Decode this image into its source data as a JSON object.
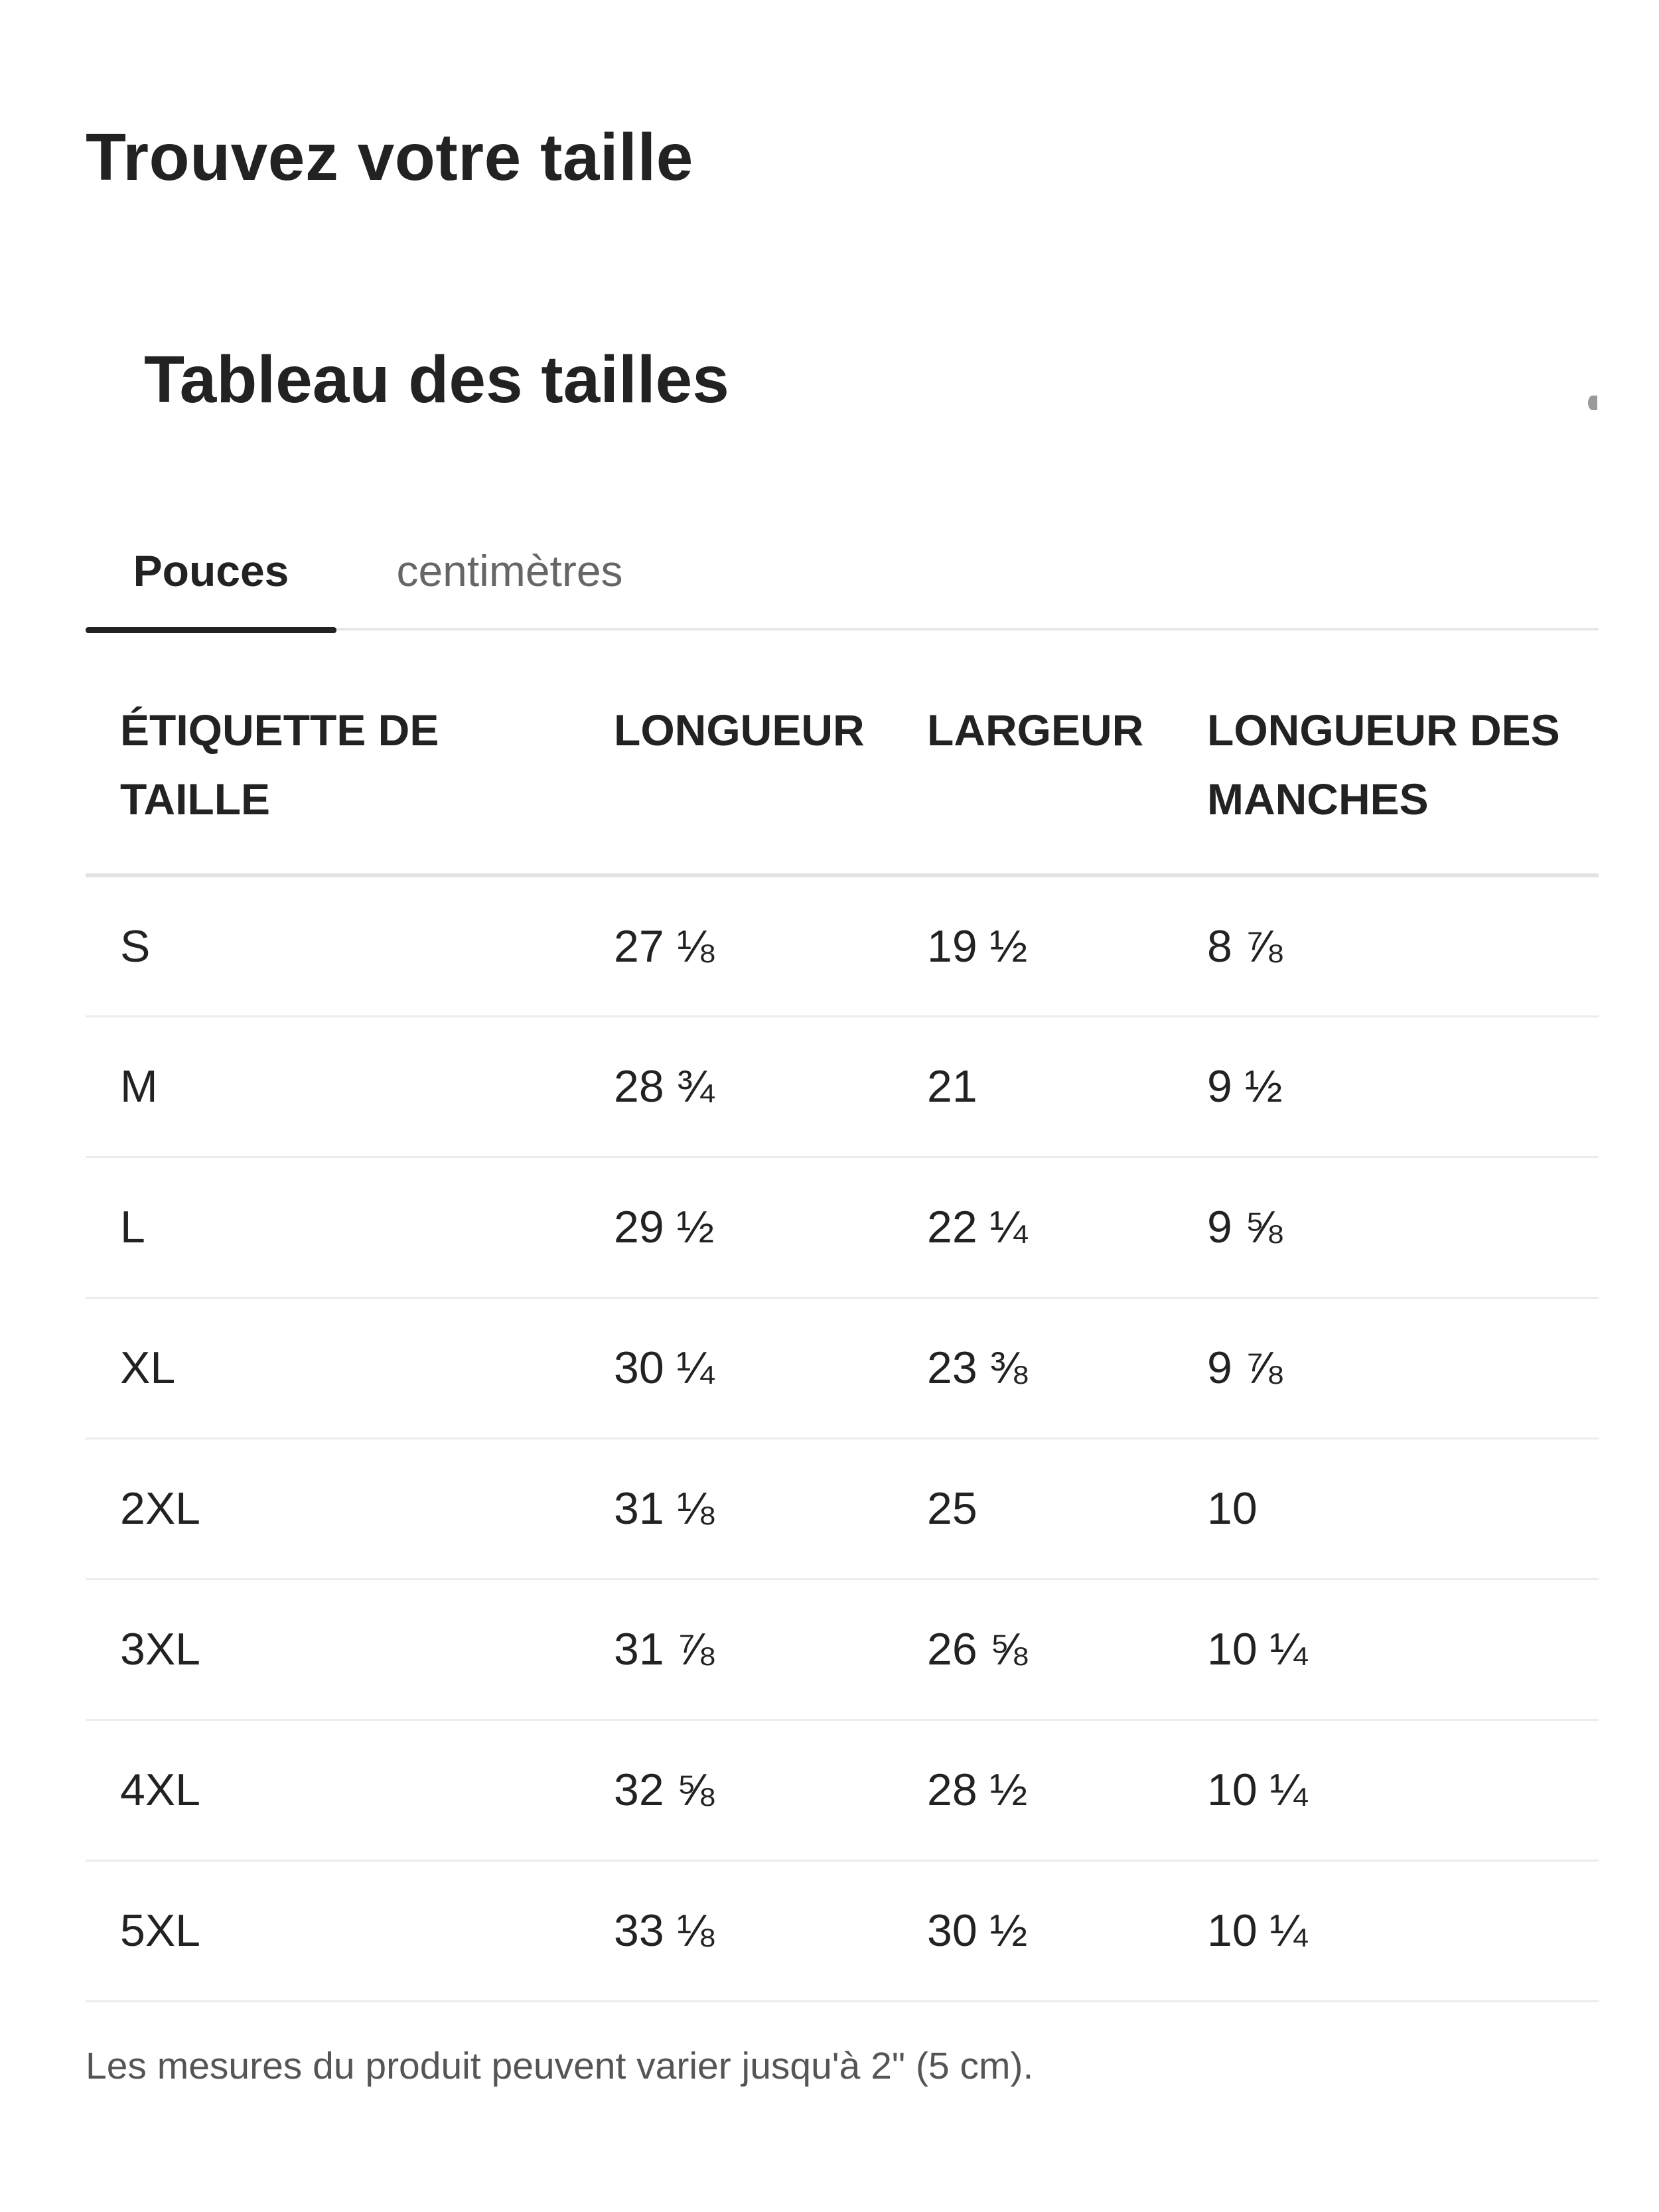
{
  "header": {
    "title": "Trouvez votre taille"
  },
  "size_chart": {
    "title": "Tableau des tailles",
    "tabs": [
      {
        "label": "Pouces",
        "active": true
      },
      {
        "label": "centimètres",
        "active": false
      }
    ],
    "columns": [
      "ÉTIQUETTE DE TAILLE",
      "LONGUEUR",
      "LARGEUR",
      "LONGUEUR DES MANCHES"
    ],
    "rows": [
      [
        "S",
        "27 ⅛",
        "19 ½",
        "8 ⅞"
      ],
      [
        "M",
        "28 ¾",
        "21",
        "9 ½"
      ],
      [
        "L",
        "29 ½",
        "22 ¼",
        "9 ⅝"
      ],
      [
        "XL",
        "30 ¼",
        "23 ⅜",
        "9 ⅞"
      ],
      [
        "2XL",
        "31 ⅛",
        "25",
        "10"
      ],
      [
        "3XL",
        "31 ⅞",
        "26 ⅝",
        "10 ¼"
      ],
      [
        "4XL",
        "32 ⅝",
        "28 ½",
        "10 ¼"
      ],
      [
        "5XL",
        "33 ⅛",
        "30 ½",
        "10 ¼"
      ]
    ],
    "note": "Les mesures du produit peuvent varier jusqu'à 2\" (5 cm)."
  },
  "colors": {
    "text": "#222222",
    "muted": "#666666",
    "divider": "#e6e6e6",
    "background": "#ffffff"
  }
}
